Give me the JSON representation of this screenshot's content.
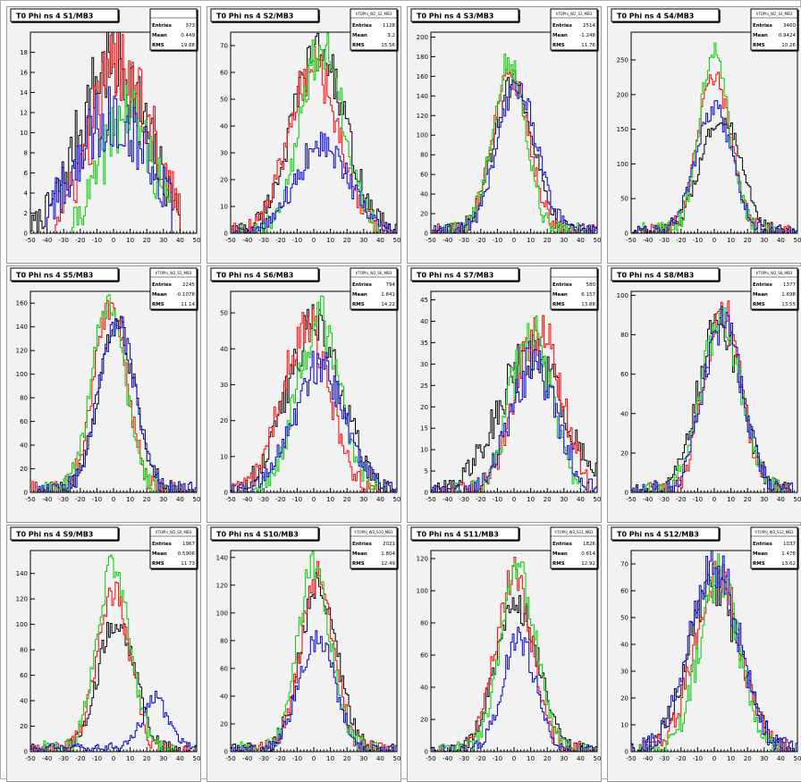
{
  "chart_data": [
    {
      "type": "histogram",
      "title": "T0 Phi ns 4 S1/MB3",
      "stats": {
        "name": "",
        "entries": "373",
        "mean": "0.449",
        "rms": "19.88"
      },
      "xlim": [
        -50,
        50
      ],
      "ylim": [
        0,
        20
      ],
      "x_ticks": [
        -50,
        -40,
        -30,
        -20,
        -10,
        0,
        10,
        20,
        30,
        40,
        50
      ],
      "y_ticks": [
        0,
        2,
        4,
        6,
        8,
        10,
        12,
        14,
        16,
        18
      ],
      "series": [
        {
          "color": "#000000",
          "center": 0,
          "sigma": 20,
          "peak": 17,
          "tail": null,
          "range": [
            -50,
            40
          ]
        },
        {
          "color": "#ff0000",
          "center": 5,
          "sigma": 18,
          "peak": 17,
          "tail": null,
          "range": [
            -35,
            40
          ]
        },
        {
          "color": "#00cc00",
          "center": 8,
          "sigma": 15,
          "peak": 12,
          "tail": null,
          "range": [
            -25,
            35
          ]
        },
        {
          "color": "#0000cc",
          "center": 0,
          "sigma": 22,
          "peak": 12,
          "tail": null,
          "range": [
            -40,
            35
          ]
        }
      ]
    },
    {
      "type": "histogram",
      "title": "T0 Phi ns 4 S2/MB3",
      "stats": {
        "name": "hTOPhi_W2_S2_MB3",
        "entries": "1128",
        "mean": "3.2",
        "rms": "15.56"
      },
      "xlim": [
        -50,
        50
      ],
      "ylim": [
        0,
        75
      ],
      "x_ticks": [
        -50,
        -40,
        -30,
        -20,
        -10,
        0,
        10,
        20,
        30,
        40,
        50
      ],
      "y_ticks": [
        0,
        10,
        20,
        30,
        40,
        50,
        60,
        70
      ],
      "series": [
        {
          "color": "#000000",
          "center": 3,
          "sigma": 16,
          "peak": 68,
          "tail": null,
          "range": [
            -50,
            50
          ]
        },
        {
          "color": "#ff0000",
          "center": 0,
          "sigma": 15,
          "peak": 62,
          "tail": null,
          "range": [
            -50,
            45
          ]
        },
        {
          "color": "#00cc00",
          "center": 5,
          "sigma": 13,
          "peak": 70,
          "tail": null,
          "range": [
            -45,
            40
          ]
        },
        {
          "color": "#0000cc",
          "center": 5,
          "sigma": 16,
          "peak": 33,
          "tail": null,
          "range": [
            -50,
            50
          ]
        }
      ]
    },
    {
      "type": "histogram",
      "title": "T0 Phi ns 4 S3/MB3",
      "stats": {
        "name": "hTOPhi_W2_S3_MB3",
        "entries": "2514",
        "mean": "-1.248",
        "rms": "11.76"
      },
      "xlim": [
        -50,
        50
      ],
      "ylim": [
        0,
        205
      ],
      "x_ticks": [
        -50,
        -40,
        -30,
        -20,
        -10,
        0,
        10,
        20,
        30,
        40,
        50
      ],
      "y_ticks": [
        0,
        20,
        40,
        60,
        80,
        100,
        120,
        140,
        160,
        180,
        200
      ],
      "series": [
        {
          "color": "#000000",
          "center": 0,
          "sigma": 12,
          "peak": 155,
          "tail": null,
          "range": [
            -50,
            50
          ]
        },
        {
          "color": "#ff0000",
          "center": -2,
          "sigma": 11,
          "peak": 160,
          "tail": null,
          "range": [
            -50,
            50
          ]
        },
        {
          "color": "#00cc00",
          "center": -3,
          "sigma": 10,
          "peak": 175,
          "tail": null,
          "range": [
            -45,
            40
          ]
        },
        {
          "color": "#0000cc",
          "center": 2,
          "sigma": 12,
          "peak": 150,
          "tail": null,
          "range": [
            -50,
            50
          ]
        }
      ]
    },
    {
      "type": "histogram",
      "title": "T0 Phi ns 4 S4/MB3",
      "stats": {
        "name": "hTOPhi_W2_S4_MB3",
        "entries": "3460",
        "mean": "0.9424",
        "rms": "10.26"
      },
      "xlim": [
        -50,
        50
      ],
      "ylim": [
        0,
        290
      ],
      "x_ticks": [
        -50,
        -40,
        -30,
        -20,
        -10,
        0,
        10,
        20,
        30,
        40,
        50
      ],
      "y_ticks": [
        0,
        50,
        100,
        150,
        200,
        250
      ],
      "series": [
        {
          "color": "#000000",
          "center": 4,
          "sigma": 12,
          "peak": 170,
          "tail": null,
          "range": [
            -50,
            50
          ]
        },
        {
          "color": "#ff0000",
          "center": 0,
          "sigma": 10,
          "peak": 225,
          "tail": null,
          "range": [
            -50,
            45
          ]
        },
        {
          "color": "#00cc00",
          "center": 0,
          "sigma": 9,
          "peak": 265,
          "tail": null,
          "range": [
            -45,
            40
          ]
        },
        {
          "color": "#0000cc",
          "center": 0,
          "sigma": 11,
          "peak": 180,
          "tail": null,
          "range": [
            -50,
            50
          ]
        }
      ]
    },
    {
      "type": "histogram",
      "title": "T0 Phi ns 4 S5/MB3",
      "stats": {
        "name": "hTOPhi_W2_S5_MB3",
        "entries": "2245",
        "mean": "-0.1078",
        "rms": "11.14"
      },
      "xlim": [
        -50,
        50
      ],
      "ylim": [
        0,
        170
      ],
      "x_ticks": [
        -50,
        -40,
        -30,
        -20,
        -10,
        0,
        10,
        20,
        30,
        40,
        50
      ],
      "y_ticks": [
        0,
        20,
        40,
        60,
        80,
        100,
        120,
        140,
        160
      ],
      "series": [
        {
          "color": "#000000",
          "center": 2,
          "sigma": 11,
          "peak": 140,
          "tail": null,
          "range": [
            -50,
            50
          ]
        },
        {
          "color": "#ff0000",
          "center": -2,
          "sigma": 10,
          "peak": 160,
          "tail": null,
          "range": [
            -50,
            45
          ]
        },
        {
          "color": "#00cc00",
          "center": -3,
          "sigma": 10,
          "peak": 160,
          "tail": null,
          "range": [
            -45,
            40
          ]
        },
        {
          "color": "#0000cc",
          "center": 2,
          "sigma": 11,
          "peak": 145,
          "tail": null,
          "range": [
            -50,
            50
          ]
        }
      ]
    },
    {
      "type": "histogram",
      "title": "T0 Phi ns 4 S6/MB3",
      "stats": {
        "name": "hTOPhi_W2_S6_MB3",
        "entries": "794",
        "mean": "1.841",
        "rms": "14.22"
      },
      "xlim": [
        -50,
        50
      ],
      "ylim": [
        0,
        56
      ],
      "x_ticks": [
        -50,
        -40,
        -30,
        -20,
        -10,
        0,
        10,
        20,
        30,
        40,
        50
      ],
      "y_ticks": [
        0,
        10,
        20,
        30,
        40,
        50
      ],
      "series": [
        {
          "color": "#000000",
          "center": 0,
          "sigma": 17,
          "peak": 46,
          "tail": null,
          "range": [
            -50,
            50
          ]
        },
        {
          "color": "#ff0000",
          "center": -5,
          "sigma": 14,
          "peak": 47,
          "tail": null,
          "range": [
            -50,
            40
          ]
        },
        {
          "color": "#00cc00",
          "center": 3,
          "sigma": 13,
          "peak": 48,
          "tail": null,
          "range": [
            -45,
            40
          ]
        },
        {
          "color": "#0000cc",
          "center": 3,
          "sigma": 16,
          "peak": 34,
          "tail": null,
          "range": [
            -50,
            50
          ]
        }
      ]
    },
    {
      "type": "histogram",
      "title": "T0 Phi ns 4 S7/MB3",
      "stats": {
        "name": "",
        "entries": "580",
        "mean": "6.157",
        "rms": "13.88"
      },
      "xlim": [
        -50,
        50
      ],
      "ylim": [
        0,
        47
      ],
      "x_ticks": [
        -50,
        -40,
        -30,
        -20,
        -10,
        0,
        10,
        20,
        30,
        40,
        50
      ],
      "y_ticks": [
        0,
        5,
        10,
        15,
        20,
        25,
        30,
        35,
        40,
        45
      ],
      "series": [
        {
          "color": "#000000",
          "center": 10,
          "sigma": 20,
          "peak": 32,
          "tail": null,
          "range": [
            -50,
            50
          ]
        },
        {
          "color": "#ff0000",
          "center": 15,
          "sigma": 14,
          "peak": 38,
          "tail": null,
          "range": [
            -45,
            45
          ]
        },
        {
          "color": "#00cc00",
          "center": 10,
          "sigma": 12,
          "peak": 38,
          "tail": null,
          "range": [
            -40,
            40
          ]
        },
        {
          "color": "#0000cc",
          "center": 12,
          "sigma": 14,
          "peak": 30,
          "tail": null,
          "range": [
            -50,
            50
          ]
        }
      ]
    },
    {
      "type": "histogram",
      "title": "T0 Phi ns 4 S8/MB3",
      "stats": {
        "name": "hTOPhi_W2_S8_MB3",
        "entries": "1377",
        "mean": "1.698",
        "rms": "13.55"
      },
      "xlim": [
        -50,
        50
      ],
      "ylim": [
        0,
        102
      ],
      "x_ticks": [
        -50,
        -40,
        -30,
        -20,
        -10,
        0,
        10,
        20,
        30,
        40,
        50
      ],
      "y_ticks": [
        0,
        20,
        40,
        60,
        80,
        100
      ],
      "series": [
        {
          "color": "#000000",
          "center": 3,
          "sigma": 13,
          "peak": 85,
          "tail": null,
          "range": [
            -50,
            50
          ]
        },
        {
          "color": "#ff0000",
          "center": 5,
          "sigma": 11,
          "peak": 92,
          "tail": null,
          "range": [
            -45,
            45
          ]
        },
        {
          "color": "#00cc00",
          "center": 4,
          "sigma": 12,
          "peak": 88,
          "tail": null,
          "range": [
            -45,
            45
          ]
        },
        {
          "color": "#0000cc",
          "center": 5,
          "sigma": 12,
          "peak": 85,
          "tail": null,
          "range": [
            -50,
            50
          ]
        }
      ]
    },
    {
      "type": "histogram",
      "title": "T0 Phi ns 4 S9/MB3",
      "stats": {
        "name": "hTOPhi_W2_S9_MB3",
        "entries": "1967",
        "mean": "0.5906",
        "rms": "11.73"
      },
      "xlim": [
        -50,
        50
      ],
      "ylim": [
        0,
        158
      ],
      "x_ticks": [
        -50,
        -40,
        -30,
        -20,
        -10,
        0,
        10,
        20,
        30,
        40,
        50
      ],
      "y_ticks": [
        0,
        20,
        40,
        60,
        80,
        100,
        120,
        140
      ],
      "series": [
        {
          "color": "#000000",
          "center": 2,
          "sigma": 11,
          "peak": 105,
          "tail": null,
          "range": [
            -50,
            50
          ]
        },
        {
          "color": "#ff0000",
          "center": 0,
          "sigma": 10,
          "peak": 125,
          "tail": null,
          "range": [
            -50,
            45
          ]
        },
        {
          "color": "#00cc00",
          "center": 0,
          "sigma": 10,
          "peak": 145,
          "tail": null,
          "range": [
            -45,
            40
          ]
        },
        {
          "color": "#0000cc",
          "center": 25,
          "sigma": 8,
          "peak": 38,
          "tail": 3,
          "range": [
            -50,
            50
          ]
        }
      ]
    },
    {
      "type": "histogram",
      "title": "T0 Phi ns 4 S10/MB3",
      "stats": {
        "name": "hTOPhi_W2_S10_MB3",
        "entries": "2021",
        "mean": "1.804",
        "rms": "12.49"
      },
      "xlim": [
        -50,
        50
      ],
      "ylim": [
        0,
        145
      ],
      "x_ticks": [
        -50,
        -40,
        -30,
        -20,
        -10,
        0,
        10,
        20,
        30,
        40,
        50
      ],
      "y_ticks": [
        0,
        20,
        40,
        60,
        80,
        100,
        120,
        140
      ],
      "series": [
        {
          "color": "#000000",
          "center": 3,
          "sigma": 11,
          "peak": 120,
          "tail": null,
          "range": [
            -50,
            50
          ]
        },
        {
          "color": "#ff0000",
          "center": 2,
          "sigma": 10,
          "peak": 125,
          "tail": null,
          "range": [
            -45,
            45
          ]
        },
        {
          "color": "#00cc00",
          "center": 0,
          "sigma": 10,
          "peak": 135,
          "tail": null,
          "range": [
            -45,
            40
          ]
        },
        {
          "color": "#0000cc",
          "center": 2,
          "sigma": 11,
          "peak": 82,
          "tail": null,
          "range": [
            -50,
            50
          ]
        }
      ]
    },
    {
      "type": "histogram",
      "title": "T0 Phi ns 4 S11/MB3",
      "stats": {
        "name": "hTOPhi_W2_S11_MB3",
        "entries": "1826",
        "mean": "0.614",
        "rms": "12.92"
      },
      "xlim": [
        -50,
        50
      ],
      "ylim": [
        0,
        125
      ],
      "x_ticks": [
        -50,
        -40,
        -30,
        -20,
        -10,
        0,
        10,
        20,
        30,
        40,
        50
      ],
      "y_ticks": [
        0,
        20,
        40,
        60,
        80,
        100,
        120
      ],
      "series": [
        {
          "color": "#000000",
          "center": 2,
          "sigma": 13,
          "peak": 90,
          "tail": null,
          "range": [
            -50,
            50
          ]
        },
        {
          "color": "#ff0000",
          "center": 0,
          "sigma": 11,
          "peak": 110,
          "tail": null,
          "range": [
            -45,
            45
          ]
        },
        {
          "color": "#00cc00",
          "center": 3,
          "sigma": 11,
          "peak": 110,
          "tail": null,
          "range": [
            -45,
            45
          ]
        },
        {
          "color": "#0000cc",
          "center": 3,
          "sigma": 10,
          "peak": 70,
          "tail": null,
          "range": [
            -50,
            50
          ]
        }
      ]
    },
    {
      "type": "histogram",
      "title": "T0 Phi ns 4 S12/MB3",
      "stats": {
        "name": "hTOPhi_W2_S12_MB3",
        "entries": "1037",
        "mean": "1.478",
        "rms": "13.62"
      },
      "xlim": [
        -50,
        50
      ],
      "ylim": [
        0,
        75
      ],
      "x_ticks": [
        -50,
        -40,
        -30,
        -20,
        -10,
        0,
        10,
        20,
        30,
        40,
        50
      ],
      "y_ticks": [
        0,
        10,
        20,
        30,
        40,
        50,
        60,
        70
      ],
      "series": [
        {
          "color": "#000000",
          "center": 0,
          "sigma": 16,
          "peak": 60,
          "tail": null,
          "range": [
            -50,
            50
          ]
        },
        {
          "color": "#ff0000",
          "center": 2,
          "sigma": 14,
          "peak": 65,
          "tail": null,
          "range": [
            -45,
            45
          ]
        },
        {
          "color": "#00cc00",
          "center": 3,
          "sigma": 12,
          "peak": 65,
          "tail": null,
          "range": [
            -45,
            40
          ]
        },
        {
          "color": "#0000cc",
          "center": 0,
          "sigma": 15,
          "peak": 70,
          "tail": null,
          "range": [
            -50,
            50
          ]
        }
      ]
    }
  ]
}
